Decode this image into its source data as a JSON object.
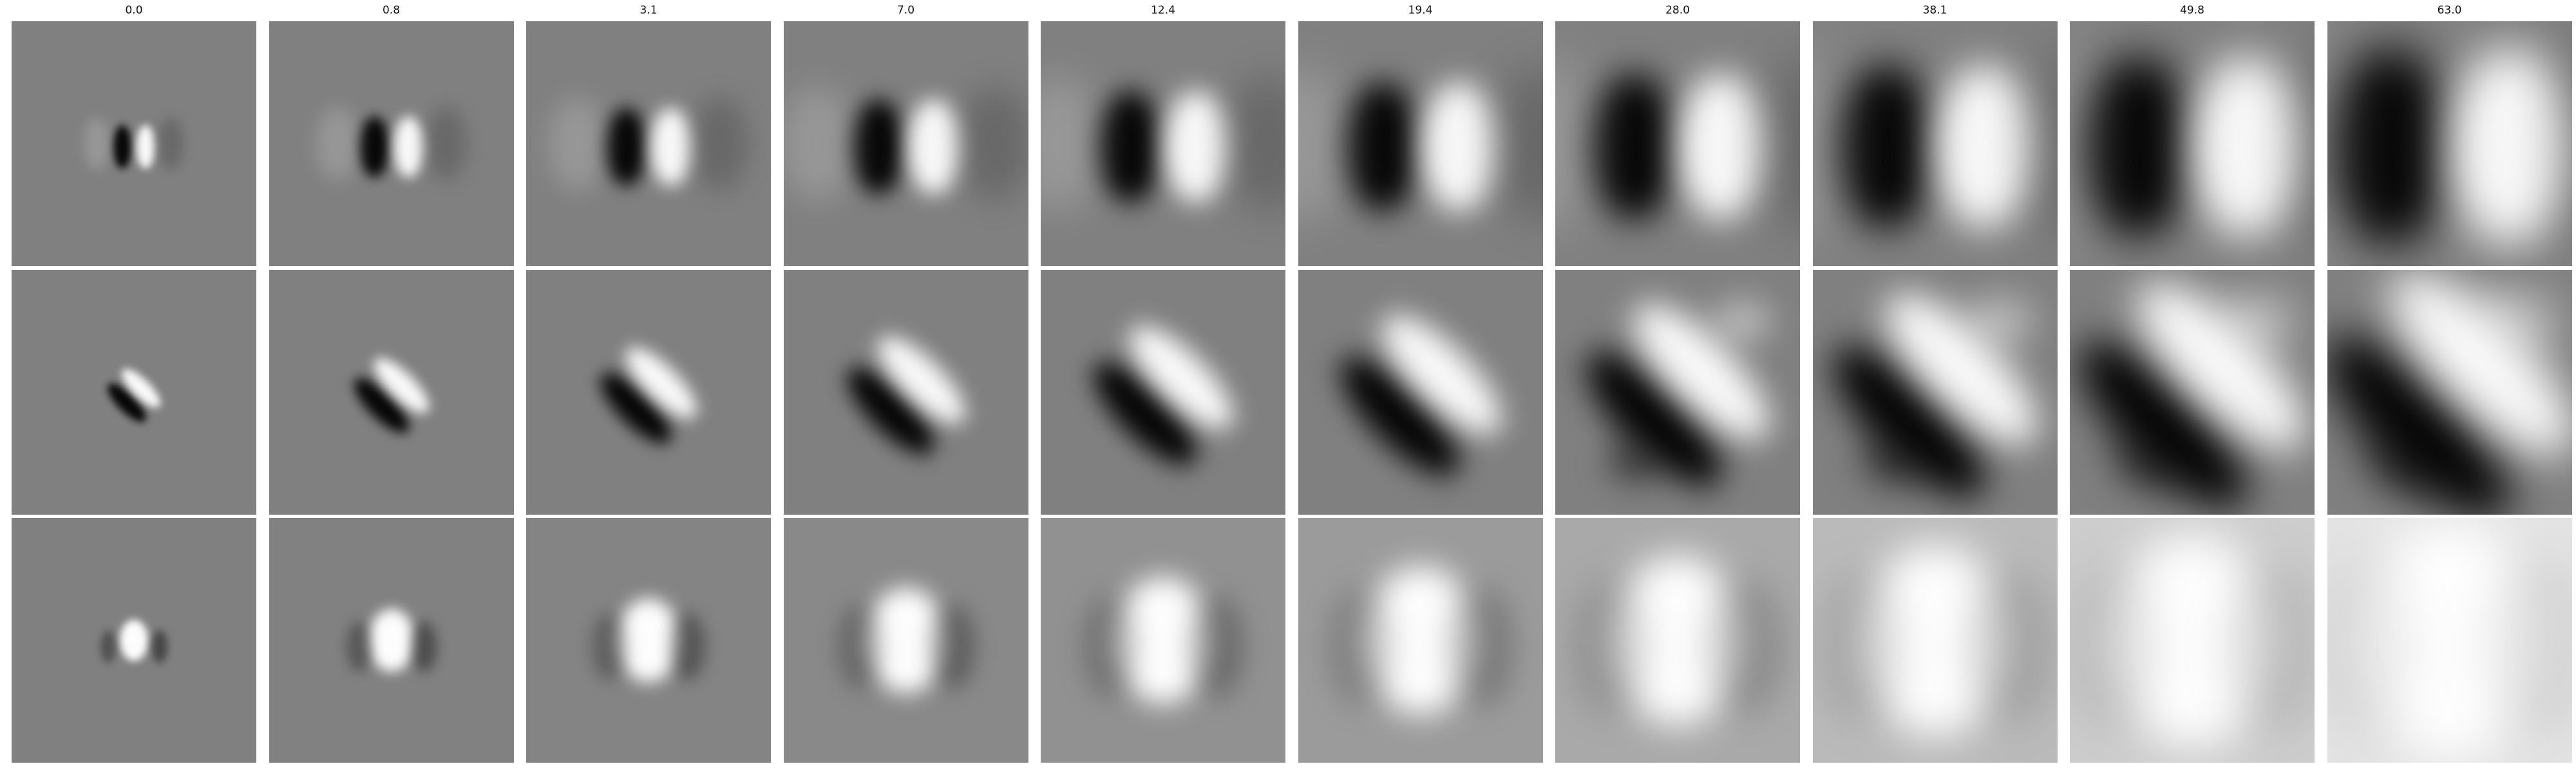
{
  "columns": [
    {
      "title": "0.0",
      "spread": 0.0
    },
    {
      "title": "0.8",
      "spread": 0.8
    },
    {
      "title": "3.1",
      "spread": 3.1
    },
    {
      "title": "7.0",
      "spread": 7.0
    },
    {
      "title": "12.4",
      "spread": 12.4
    },
    {
      "title": "19.4",
      "spread": 19.4
    },
    {
      "title": "28.0",
      "spread": 28.0
    },
    {
      "title": "38.1",
      "spread": 38.1
    },
    {
      "title": "49.8",
      "spread": 49.8
    },
    {
      "title": "63.0",
      "spread": 63.0
    }
  ],
  "rows": [
    {
      "pattern": "vertical-edge-filter"
    },
    {
      "pattern": "diagonal-edge-filter"
    },
    {
      "pattern": "center-blob-filter"
    }
  ],
  "colors": {
    "background": "#ffffff",
    "neutral_gray": "#808080",
    "dark": "#000000",
    "light": "#ffffff"
  }
}
